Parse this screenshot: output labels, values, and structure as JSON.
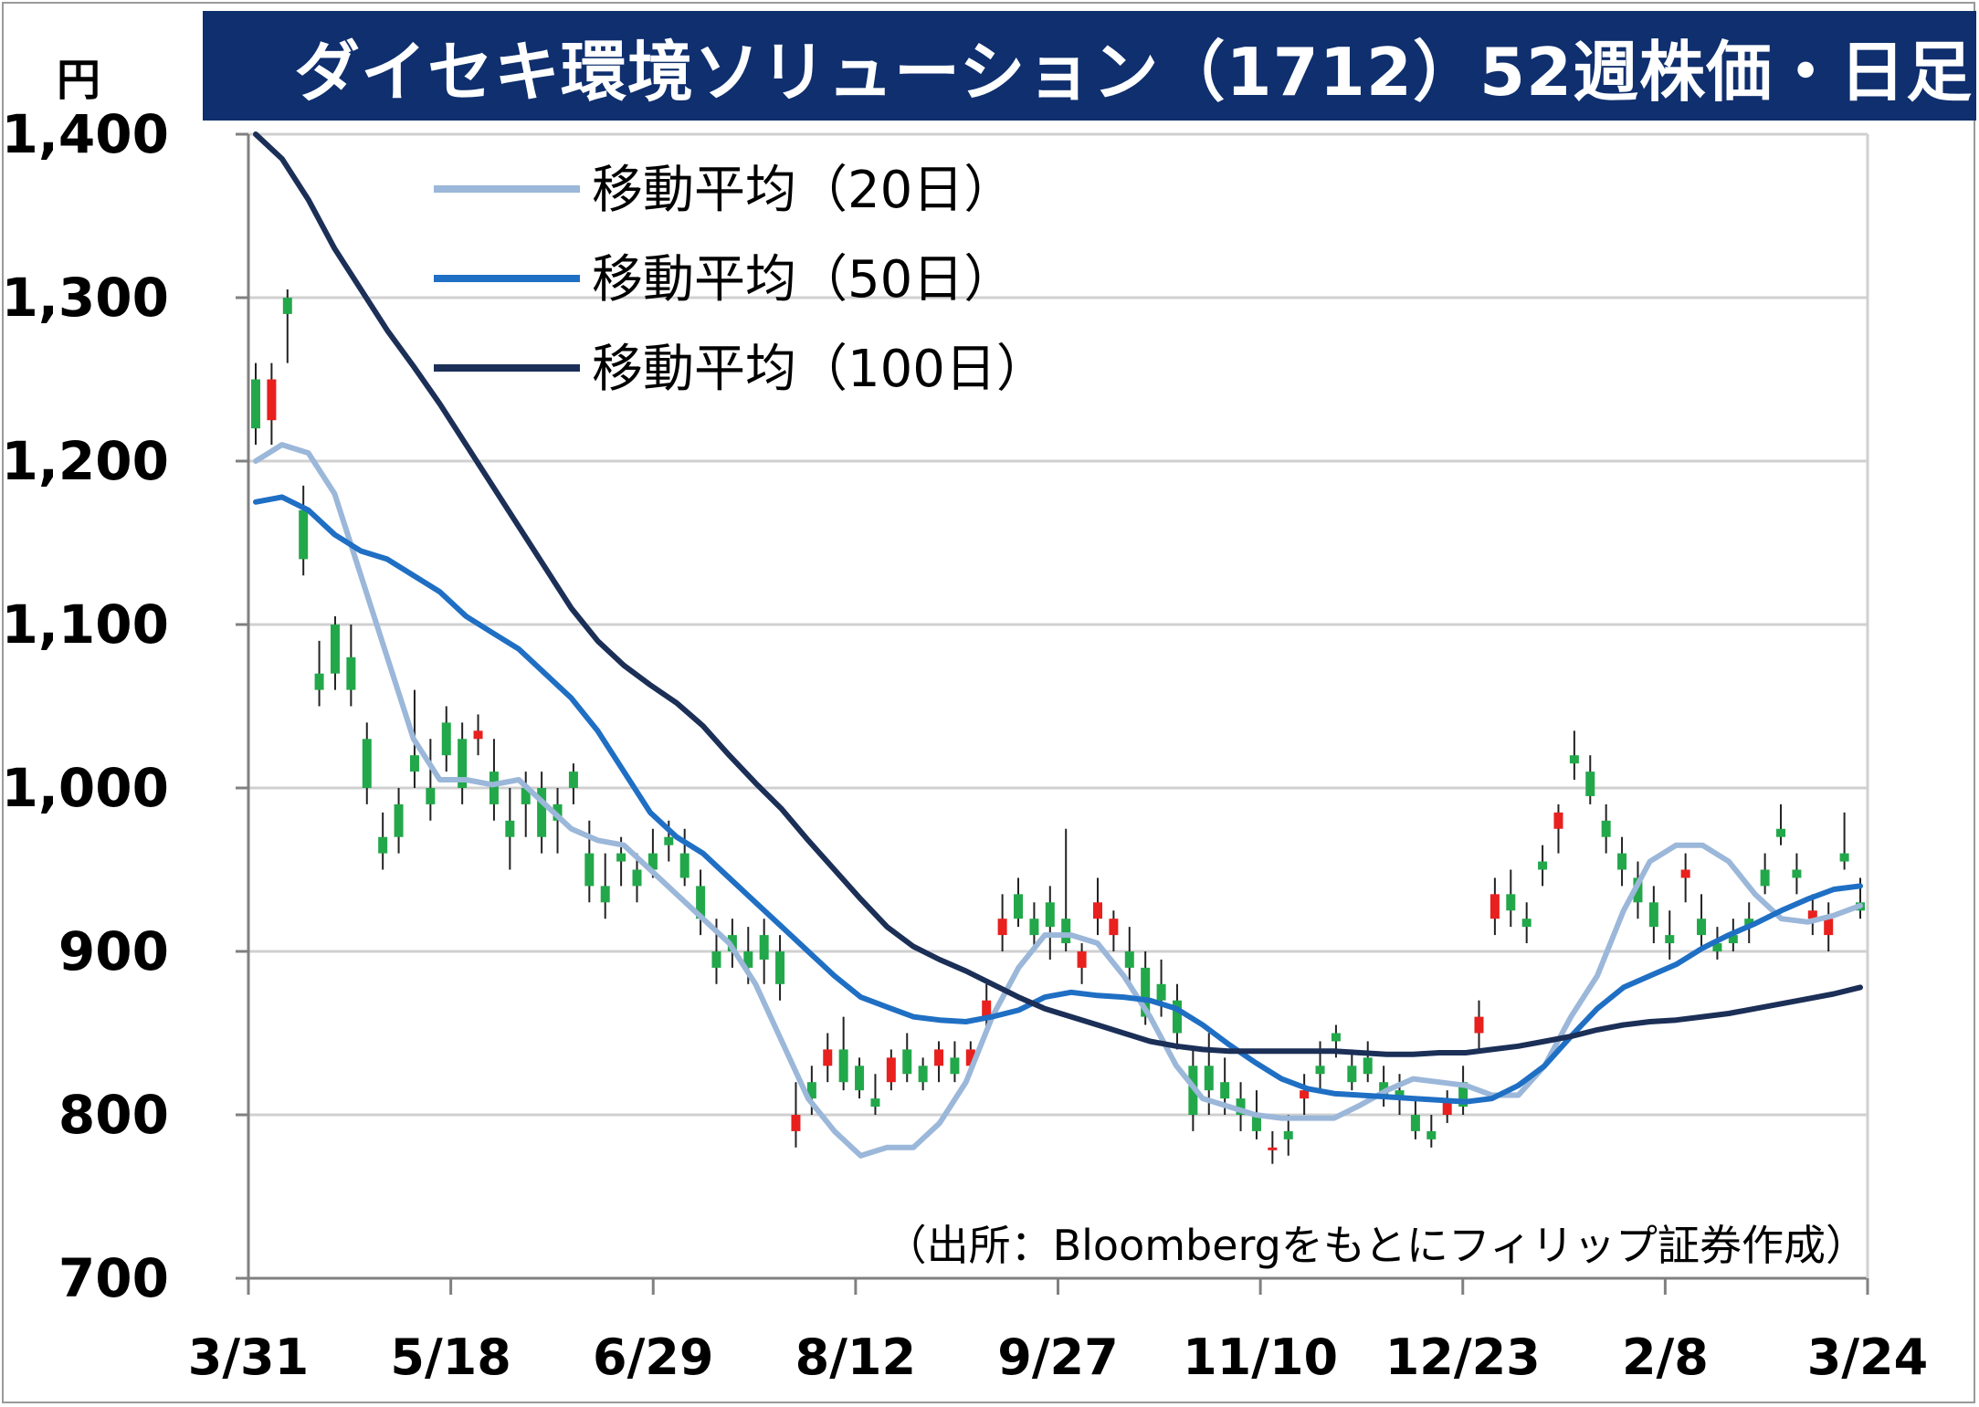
{
  "title": "ダイセキ環境ソリューション（1712）52週株価・日足",
  "chart_data": {
    "type": "candlestick",
    "title": "ダイセキ環境ソリューション（1712）52週株価・日足",
    "ylabel": "円",
    "ylim": [
      700,
      1400
    ],
    "yticks": [
      1400,
      1300,
      1200,
      1100,
      1000,
      900,
      800,
      700
    ],
    "ytick_labels": [
      "1,400",
      "1,300",
      "1,200",
      "1,100",
      "1,000",
      "900",
      "800",
      "700"
    ],
    "xtick_labels": [
      "3/31",
      "5/18",
      "6/29",
      "8/12",
      "9/27",
      "11/10",
      "12/23",
      "2/8",
      "3/24"
    ],
    "grid": true,
    "legend_position": "top-left",
    "series": [
      {
        "name": "移動平均（20日）",
        "color": "#9bb7d9",
        "values": [
          1200,
          1210,
          1205,
          1180,
          1130,
          1080,
          1030,
          1005,
          1005,
          1002,
          1005,
          990,
          975,
          968,
          965,
          950,
          935,
          920,
          905,
          880,
          845,
          810,
          790,
          775,
          780,
          780,
          795,
          820,
          860,
          890,
          910,
          910,
          905,
          885,
          860,
          830,
          810,
          805,
          800,
          798,
          798,
          798,
          806,
          815,
          822,
          820,
          818,
          812,
          812,
          830,
          860,
          885,
          925,
          955,
          965,
          965,
          955,
          935,
          920,
          918,
          922,
          928
        ]
      },
      {
        "name": "移動平均（50日）",
        "color": "#1f6fc4",
        "values": [
          1175,
          1178,
          1170,
          1155,
          1145,
          1140,
          1130,
          1120,
          1105,
          1095,
          1085,
          1070,
          1055,
          1035,
          1010,
          985,
          970,
          960,
          945,
          930,
          915,
          900,
          885,
          872,
          866,
          860,
          858,
          857,
          860,
          864,
          872,
          875,
          873,
          872,
          870,
          865,
          855,
          843,
          832,
          822,
          816,
          813,
          812,
          811,
          810,
          809,
          808,
          810,
          818,
          830,
          848,
          865,
          878,
          885,
          892,
          902,
          910,
          917,
          925,
          932,
          938,
          940
        ]
      },
      {
        "name": "移動平均（100日）",
        "color": "#1b2f57",
        "values": [
          1400,
          1385,
          1360,
          1330,
          1305,
          1280,
          1258,
          1235,
          1210,
          1185,
          1160,
          1135,
          1110,
          1090,
          1075,
          1063,
          1052,
          1038,
          1020,
          1003,
          987,
          968,
          950,
          932,
          915,
          903,
          895,
          888,
          880,
          872,
          865,
          860,
          855,
          850,
          845,
          842,
          840,
          839,
          839,
          839,
          839,
          839,
          838,
          837,
          837,
          838,
          838,
          840,
          842,
          845,
          848,
          852,
          855,
          857,
          858,
          860,
          862,
          865,
          868,
          871,
          874,
          878
        ]
      }
    ],
    "candles_ohlc": [
      [
        1250,
        1260,
        1210,
        1220
      ],
      [
        1225,
        1260,
        1210,
        1250
      ],
      [
        1300,
        1305,
        1260,
        1290
      ],
      [
        1170,
        1185,
        1130,
        1140
      ],
      [
        1070,
        1090,
        1050,
        1060
      ],
      [
        1100,
        1105,
        1060,
        1070
      ],
      [
        1080,
        1100,
        1050,
        1060
      ],
      [
        1030,
        1040,
        990,
        1000
      ],
      [
        970,
        985,
        950,
        960
      ],
      [
        990,
        1000,
        960,
        970
      ],
      [
        1020,
        1060,
        1000,
        1010
      ],
      [
        1000,
        1030,
        980,
        990
      ],
      [
        1040,
        1050,
        1010,
        1020
      ],
      [
        1030,
        1040,
        990,
        1000
      ],
      [
        1030,
        1045,
        1020,
        1035
      ],
      [
        1010,
        1030,
        980,
        990
      ],
      [
        980,
        1000,
        950,
        970
      ],
      [
        1000,
        1010,
        970,
        990
      ],
      [
        1000,
        1010,
        960,
        970
      ],
      [
        990,
        1000,
        960,
        980
      ],
      [
        1010,
        1015,
        990,
        1000
      ],
      [
        960,
        980,
        930,
        940
      ],
      [
        940,
        960,
        920,
        930
      ],
      [
        960,
        970,
        940,
        955
      ],
      [
        950,
        960,
        930,
        940
      ],
      [
        960,
        975,
        945,
        950
      ],
      [
        970,
        980,
        955,
        965
      ],
      [
        960,
        975,
        940,
        945
      ],
      [
        940,
        950,
        910,
        920
      ],
      [
        900,
        920,
        880,
        890
      ],
      [
        910,
        920,
        890,
        900
      ],
      [
        900,
        915,
        880,
        890
      ],
      [
        910,
        920,
        880,
        895
      ],
      [
        900,
        910,
        870,
        880
      ],
      [
        790,
        820,
        780,
        800
      ],
      [
        820,
        830,
        800,
        810
      ],
      [
        830,
        850,
        820,
        840
      ],
      [
        840,
        860,
        815,
        820
      ],
      [
        830,
        835,
        810,
        815
      ],
      [
        810,
        825,
        800,
        805
      ],
      [
        820,
        840,
        815,
        835
      ],
      [
        840,
        850,
        820,
        825
      ],
      [
        830,
        835,
        815,
        820
      ],
      [
        830,
        845,
        820,
        840
      ],
      [
        835,
        845,
        820,
        825
      ],
      [
        830,
        845,
        825,
        840
      ],
      [
        860,
        880,
        850,
        870
      ],
      [
        910,
        935,
        900,
        920
      ],
      [
        935,
        945,
        915,
        920
      ],
      [
        920,
        930,
        900,
        910
      ],
      [
        930,
        940,
        895,
        915
      ],
      [
        920,
        975,
        900,
        905
      ],
      [
        890,
        905,
        880,
        900
      ],
      [
        920,
        945,
        910,
        930
      ],
      [
        910,
        925,
        900,
        920
      ],
      [
        900,
        915,
        880,
        890
      ],
      [
        890,
        900,
        855,
        860
      ],
      [
        880,
        895,
        860,
        870
      ],
      [
        870,
        880,
        840,
        850
      ],
      [
        830,
        840,
        790,
        800
      ],
      [
        830,
        850,
        800,
        815
      ],
      [
        820,
        835,
        800,
        810
      ],
      [
        810,
        820,
        790,
        800
      ],
      [
        800,
        815,
        785,
        790
      ],
      [
        780,
        790,
        770,
        780
      ],
      [
        790,
        800,
        775,
        785
      ],
      [
        810,
        825,
        800,
        815
      ],
      [
        830,
        845,
        815,
        825
      ],
      [
        850,
        855,
        835,
        845
      ],
      [
        830,
        840,
        815,
        820
      ],
      [
        835,
        845,
        820,
        825
      ],
      [
        820,
        830,
        805,
        810
      ],
      [
        815,
        825,
        800,
        810
      ],
      [
        800,
        810,
        785,
        790
      ],
      [
        790,
        800,
        780,
        785
      ],
      [
        800,
        815,
        795,
        810
      ],
      [
        820,
        830,
        800,
        805
      ],
      [
        850,
        870,
        840,
        860
      ],
      [
        920,
        945,
        910,
        935
      ],
      [
        935,
        950,
        915,
        925
      ],
      [
        920,
        930,
        905,
        915
      ],
      [
        955,
        965,
        940,
        950
      ],
      [
        975,
        990,
        960,
        985
      ],
      [
        1020,
        1035,
        1005,
        1015
      ],
      [
        1010,
        1020,
        990,
        995
      ],
      [
        980,
        990,
        960,
        970
      ],
      [
        960,
        970,
        940,
        950
      ],
      [
        945,
        955,
        920,
        930
      ],
      [
        930,
        940,
        905,
        915
      ],
      [
        910,
        925,
        895,
        905
      ],
      [
        945,
        960,
        930,
        950
      ],
      [
        920,
        935,
        900,
        910
      ],
      [
        905,
        915,
        895,
        900
      ],
      [
        910,
        920,
        900,
        905
      ],
      [
        920,
        930,
        905,
        915
      ],
      [
        950,
        960,
        935,
        940
      ],
      [
        975,
        990,
        965,
        970
      ],
      [
        950,
        960,
        935,
        945
      ],
      [
        920,
        935,
        910,
        925
      ],
      [
        910,
        930,
        900,
        920
      ],
      [
        960,
        985,
        950,
        955
      ],
      [
        930,
        945,
        920,
        925
      ]
    ]
  },
  "legend": {
    "ma20": "移動平均（20日）",
    "ma50": "移動平均（50日）",
    "ma100": "移動平均（100日）"
  },
  "source": "（出所：Bloombergをもとにフィリップ証券作成）",
  "colors": {
    "title_bg": "#0f2f6e",
    "up": "#e8201e",
    "down": "#22a84a",
    "grid": "#d0d0d0"
  }
}
